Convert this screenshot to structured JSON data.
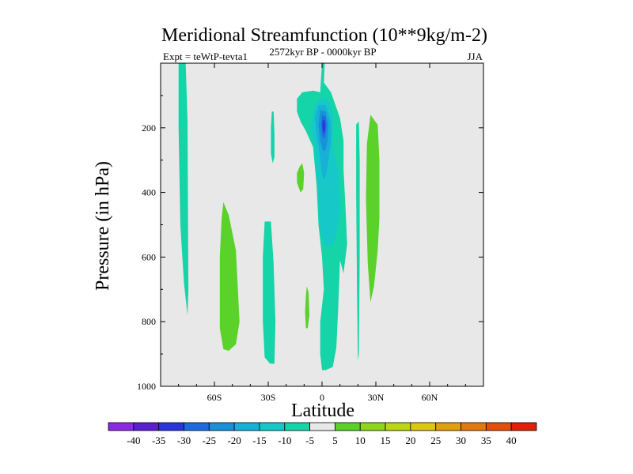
{
  "chart_data": {
    "type": "contour",
    "title": "Meridional Streamfunction (10**9kg/m-2)",
    "subtitle": "2572kyr BP - 0000kyr BP",
    "left_annotation": "Expt = teWtP-tevta1",
    "right_annotation": "JJA",
    "xlabel": "Latitude",
    "ylabel": "Pressure (in hPa)",
    "xlim": [
      -90,
      90
    ],
    "ylim": [
      1000,
      0
    ],
    "x_ticks": [
      {
        "value": -60,
        "label": "60S"
      },
      {
        "value": -30,
        "label": "30S"
      },
      {
        "value": 0,
        "label": "0"
      },
      {
        "value": 30,
        "label": "30N"
      },
      {
        "value": 60,
        "label": "60N"
      }
    ],
    "y_ticks": [
      {
        "value": 200,
        "label": "200"
      },
      {
        "value": 400,
        "label": "400"
      },
      {
        "value": 600,
        "label": "600"
      },
      {
        "value": 800,
        "label": "800"
      },
      {
        "value": 1000,
        "label": "1000"
      }
    ],
    "background_color": "#e8e8e8",
    "colorbar": {
      "levels": [
        -40,
        -35,
        -30,
        -25,
        -20,
        -15,
        -10,
        -5,
        5,
        10,
        15,
        20,
        25,
        30,
        35,
        40
      ],
      "colors": [
        "#8a2be2",
        "#5a1fd0",
        "#2a36d9",
        "#1e6be0",
        "#1991d8",
        "#17b0d6",
        "#16c8c8",
        "#14d4a8",
        "#e8e8e8",
        "#5ad22a",
        "#8ed61a",
        "#bcd614",
        "#dcc814",
        "#e0a010",
        "#e07a10",
        "#e0500c",
        "#e0200a"
      ]
    },
    "regions": [
      {
        "name": "band-80S",
        "value_class": "-10 to -5",
        "color": "#14d4a8",
        "outline": [
          [
            -80,
            0
          ],
          [
            -76,
            0
          ],
          [
            -75,
            180
          ],
          [
            -74.5,
            700
          ],
          [
            -75,
            780
          ],
          [
            -77,
            680
          ],
          [
            -79,
            500
          ],
          [
            -80,
            200
          ]
        ]
      },
      {
        "name": "band-45S",
        "value_class": "5 to 10",
        "color": "#5ad22a",
        "outline": [
          [
            -55,
            430
          ],
          [
            -52,
            470
          ],
          [
            -48,
            580
          ],
          [
            -46,
            800
          ],
          [
            -48,
            870
          ],
          [
            -52,
            890
          ],
          [
            -55,
            885
          ],
          [
            -57,
            820
          ],
          [
            -57,
            600
          ],
          [
            -56,
            480
          ]
        ]
      },
      {
        "name": "band-28S",
        "value_class": "-10 to -5",
        "color": "#14d4a8",
        "outline": [
          [
            -32,
            490
          ],
          [
            -28.5,
            490
          ],
          [
            -27,
            620
          ],
          [
            -26,
            800
          ],
          [
            -26.5,
            930
          ],
          [
            -29,
            930
          ],
          [
            -32,
            910
          ],
          [
            -33,
            800
          ],
          [
            -33,
            600
          ]
        ]
      },
      {
        "name": "patch-27S-upper",
        "value_class": "-10 to -5",
        "color": "#14d4a8",
        "outline": [
          [
            -28,
            150
          ],
          [
            -27,
            150
          ],
          [
            -26.5,
            220
          ],
          [
            -26.5,
            290
          ],
          [
            -27.5,
            310
          ],
          [
            -28.5,
            280
          ],
          [
            -28.5,
            200
          ]
        ]
      },
      {
        "name": "patch-12S",
        "value_class": "5 to 10",
        "color": "#5ad22a",
        "outline": [
          [
            -12.5,
            320
          ],
          [
            -11,
            310
          ],
          [
            -10,
            340
          ],
          [
            -10.5,
            390
          ],
          [
            -12,
            400
          ],
          [
            -14,
            370
          ],
          [
            -14,
            340
          ]
        ]
      },
      {
        "name": "patch-10S-low",
        "value_class": "5 to 10",
        "color": "#5ad22a",
        "outline": [
          [
            -8.5,
            690
          ],
          [
            -7.5,
            710
          ],
          [
            -7,
            780
          ],
          [
            -8,
            820
          ],
          [
            -9,
            820
          ],
          [
            -9.5,
            770
          ],
          [
            -9,
            720
          ]
        ]
      },
      {
        "name": "band-28N",
        "value_class": "5 to 10",
        "color": "#5ad22a",
        "outline": [
          [
            27,
            160
          ],
          [
            31,
            190
          ],
          [
            32,
            300
          ],
          [
            32,
            480
          ],
          [
            31,
            580
          ],
          [
            29,
            690
          ],
          [
            27,
            740
          ],
          [
            25.5,
            620
          ],
          [
            24.5,
            420
          ],
          [
            25,
            250
          ]
        ]
      },
      {
        "name": "band-20N",
        "value_class": "-10 to -5",
        "color": "#14d4a8",
        "outline": [
          [
            19,
            190
          ],
          [
            20.5,
            180
          ],
          [
            21,
            300
          ],
          [
            21,
            600
          ],
          [
            20.5,
            900
          ],
          [
            20,
            920
          ],
          [
            19.5,
            700
          ],
          [
            19,
            400
          ]
        ]
      },
      {
        "name": "central-cell-outer",
        "value_class": "-10 to -5",
        "color": "#14d4a8",
        "outline": [
          [
            0,
            0
          ],
          [
            1.5,
            0
          ],
          [
            1,
            60
          ],
          [
            5,
            90
          ],
          [
            10,
            170
          ],
          [
            12,
            240
          ],
          [
            12,
            330
          ],
          [
            13,
            440
          ],
          [
            14,
            560
          ],
          [
            12,
            650
          ],
          [
            10,
            610
          ],
          [
            9,
            760
          ],
          [
            8,
            880
          ],
          [
            6,
            940
          ],
          [
            2,
            950
          ],
          [
            0,
            950
          ],
          [
            -1,
            900
          ],
          [
            -1,
            800
          ],
          [
            1,
            700
          ],
          [
            0,
            600
          ],
          [
            -2,
            500
          ],
          [
            -3,
            380
          ],
          [
            -4,
            320
          ],
          [
            -5,
            260
          ],
          [
            -9,
            210
          ],
          [
            -12,
            180
          ],
          [
            -14,
            150
          ],
          [
            -14,
            110
          ],
          [
            -11,
            90
          ],
          [
            -5,
            85
          ],
          [
            -1,
            90
          ],
          [
            -0.5,
            40
          ]
        ]
      },
      {
        "name": "central-cell-15",
        "value_class": "-15 to -10",
        "color": "#16c8c8",
        "outline": [
          [
            -1,
            110
          ],
          [
            3,
            110
          ],
          [
            6,
            160
          ],
          [
            6,
            260
          ],
          [
            9,
            330
          ],
          [
            10,
            450
          ],
          [
            8,
            530
          ],
          [
            6,
            560
          ],
          [
            2,
            570
          ],
          [
            -1,
            520
          ],
          [
            -2,
            420
          ],
          [
            -3,
            330
          ],
          [
            -4,
            270
          ],
          [
            -6,
            200
          ],
          [
            -4,
            130
          ]
        ]
      },
      {
        "name": "central-cell-20",
        "value_class": "-20 to -15",
        "color": "#17b0d6",
        "outline": [
          [
            -2,
            130
          ],
          [
            2,
            130
          ],
          [
            5,
            180
          ],
          [
            5,
            240
          ],
          [
            4,
            280
          ],
          [
            3,
            320
          ],
          [
            2,
            350
          ],
          [
            1,
            360
          ],
          [
            0,
            340
          ],
          [
            -1,
            290
          ],
          [
            -3,
            220
          ],
          [
            -4,
            170
          ]
        ]
      },
      {
        "name": "central-cell-25",
        "value_class": "-25 to -20",
        "color": "#1991d8",
        "outline": [
          [
            -1,
            145
          ],
          [
            2,
            150
          ],
          [
            3.5,
            190
          ],
          [
            3,
            240
          ],
          [
            2,
            270
          ],
          [
            0.5,
            270
          ],
          [
            -1,
            240
          ],
          [
            -2,
            190
          ]
        ]
      },
      {
        "name": "central-cell-30",
        "value_class": "-30 to -25",
        "color": "#1e6be0",
        "outline": [
          [
            0,
            160
          ],
          [
            2,
            165
          ],
          [
            2.5,
            190
          ],
          [
            2,
            220
          ],
          [
            1,
            235
          ],
          [
            0,
            220
          ],
          [
            -0.5,
            190
          ]
        ]
      },
      {
        "name": "central-cell-35",
        "value_class": "-35 to -30",
        "color": "#2a36d9",
        "outline": [
          [
            0.5,
            175
          ],
          [
            1.5,
            178
          ],
          [
            1.8,
            200
          ],
          [
            1.2,
            215
          ],
          [
            0.5,
            210
          ],
          [
            0.2,
            190
          ]
        ]
      }
    ]
  }
}
